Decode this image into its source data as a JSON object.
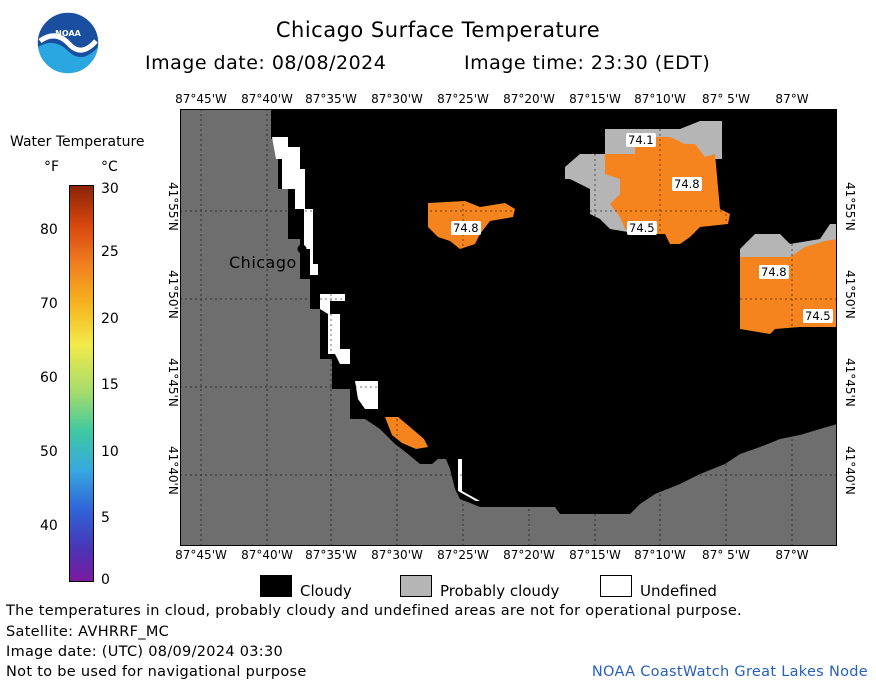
{
  "header": {
    "title": "Chicago Surface Temperature",
    "image_date": "Image date: 08/08/2024",
    "image_time": "Image time: 23:30 (EDT)"
  },
  "logo": {
    "text": "NOAA",
    "icon": "noaa-logo-icon"
  },
  "map": {
    "lon_ticks_top": [
      "87°45'W",
      "87°40'W",
      "87°35'W",
      "87°30'W",
      "87°25'W",
      "87°20'W",
      "87°15'W",
      "87°10'W",
      "87° 5'W",
      "87°W"
    ],
    "lon_ticks_bottom": [
      "87°45'W",
      "87°40'W",
      "87°35'W",
      "87°30'W",
      "87°25'W",
      "87°20'W",
      "87°15'W",
      "87°10'W",
      "87° 5'W",
      "87°W"
    ],
    "lat_ticks_left": [
      "41°55'N",
      "41°50'N",
      "41°45'N",
      "41°40'N"
    ],
    "lat_ticks_right": [
      "41°55'N",
      "41°50'N",
      "41°45'N",
      "41°40'N"
    ],
    "city": "Chicago",
    "temperature_labels": [
      "74.1",
      "74.8",
      "74.5",
      "74.8",
      "74.8",
      "74.5"
    ],
    "colors": {
      "land": "#6e6e6e",
      "cloudy": "#000000",
      "undefined": "#ffffff",
      "probably_cloudy": "#b5b5b5",
      "warm_water": "#f5841e"
    }
  },
  "colorbar": {
    "title": "Water Temperature",
    "unit_f": "°F",
    "unit_c": "°C",
    "f_ticks": [
      "80",
      "70",
      "60",
      "50",
      "40"
    ],
    "c_ticks": [
      "30",
      "25",
      "20",
      "15",
      "10",
      "5",
      "0"
    ]
  },
  "legend": {
    "cloudy": "Cloudy",
    "probably_cloudy": "Probably cloudy",
    "undefined": "Undefined"
  },
  "footer": {
    "line1": "The temperatures in cloud, probably cloudy and undefined areas are not for operational purpose.",
    "line2": "Satellite: AVHRRF_MC",
    "line3": "Image date: (UTC) 08/09/2024  03:30",
    "line4": "Not to be used for navigational purpose",
    "credit": "NOAA CoastWatch Great Lakes Node"
  }
}
